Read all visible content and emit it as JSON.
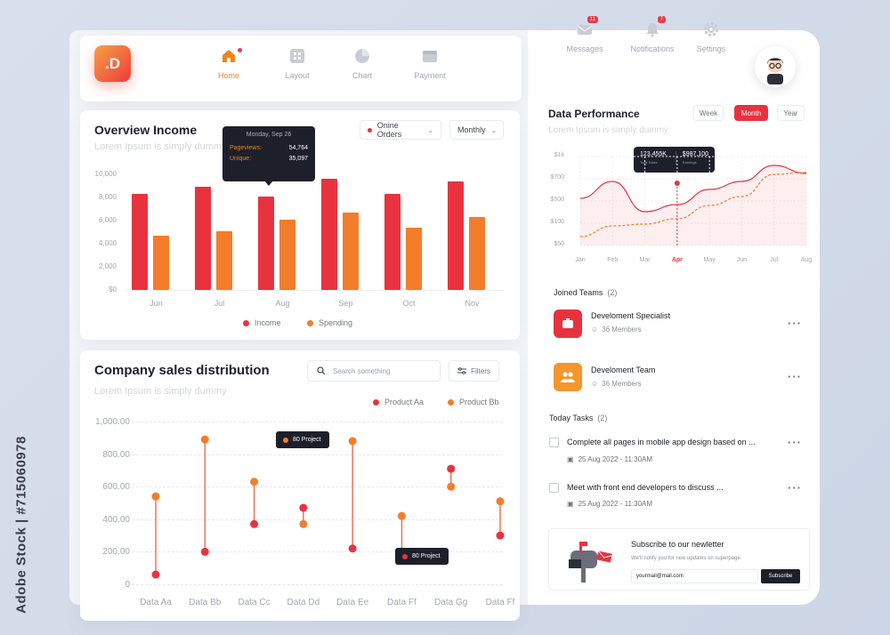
{
  "watermark": "Adobe Stock | #715060978",
  "brand": {
    "logo_text": ".D"
  },
  "nav": [
    {
      "label": "Home",
      "icon": "home-icon",
      "active": true
    },
    {
      "label": "Layout",
      "icon": "layout-icon",
      "active": false
    },
    {
      "label": "Chart",
      "icon": "pie-chart-icon",
      "active": false
    },
    {
      "label": "Payment",
      "icon": "wallet-icon",
      "active": false
    }
  ],
  "top_right": {
    "messages": {
      "label": "Messages",
      "badge": "11"
    },
    "notifications": {
      "label": "Notifications",
      "badge": "7"
    },
    "settings": {
      "label": "Settings"
    }
  },
  "colors": {
    "accent": "#f0851b",
    "red": "#e8333f",
    "orange": "#f37d2a",
    "dark": "#1d1f2b"
  },
  "overview": {
    "title": "Overview Income",
    "subtitle": "Lorem Ipsum is simply dummy",
    "filter1": "Onine Orders",
    "filter2": "Monthly",
    "legend_income": "Income",
    "legend_spending": "Spending",
    "tooltip": {
      "date": "Monday, Sep 26",
      "k1": "Pageviews:",
      "v1": "54,764",
      "k2": "Unique:",
      "v2": "35,097"
    }
  },
  "sales": {
    "title": "Company sales distribution",
    "subtitle": "Lorem Ipsum is simply dummy",
    "search_placeholder": "Search something",
    "filters_label": "Filters",
    "legend_a": "Product Aa",
    "legend_b": "Product Bb",
    "tag1": "80 Project",
    "tag2": "80 Project"
  },
  "performance": {
    "title": "Data Performance",
    "subtitle": "Lorem Ipsum is simply dummy",
    "seg_week": "Week",
    "seg_month": "Month",
    "seg_year": "Year",
    "tooltip_total": "123,455K",
    "tooltip_total_label": "Total Sales",
    "tooltip_earn": "$987,100",
    "tooltip_earn_label": "Earnings"
  },
  "teams": {
    "title": "Joined Teams",
    "count": "(2)",
    "items": [
      {
        "name": "Develoment Specialist",
        "members": "36 Members",
        "color": "#e8333f"
      },
      {
        "name": "Develoment Team",
        "members": "36 Members",
        "color": "#f5962d"
      }
    ]
  },
  "tasks": {
    "title": "Today Tasks",
    "count": "(2)",
    "items": [
      {
        "text": "Complete all pages in mobile app design based on ...",
        "date": "25 Aug 2022 - 11:30AM"
      },
      {
        "text": "Meet with front end developers to discuss ...",
        "date": "25 Aug 2022 - 11:30AM"
      }
    ]
  },
  "newsletter": {
    "title": "Subscribe to our newletter",
    "subtitle": "We'll notify you for new updates on superpage",
    "email_value": "yourmail@mail.com",
    "button": "Subscribe"
  },
  "chart_data": [
    {
      "type": "bar",
      "categories": [
        "Jun",
        "Jul",
        "Aug",
        "Sep",
        "Oct",
        "Nov"
      ],
      "ylim": [
        0,
        10000
      ],
      "yticks": [
        "10,000",
        "8,000",
        "6,000",
        "4,000",
        "2,000",
        "$0"
      ],
      "series": [
        {
          "name": "Income",
          "color": "#e8333f",
          "values": [
            8300,
            8900,
            8100,
            9600,
            8300,
            9400
          ]
        },
        {
          "name": "Spending",
          "color": "#f37d2a",
          "values": [
            4700,
            5100,
            6100,
            6700,
            5400,
            6300
          ]
        }
      ]
    },
    {
      "type": "scatter",
      "categories": [
        "Data Aa",
        "Data Bb",
        "Data Cc",
        "Data Dd",
        "Data Ee",
        "Data Ff",
        "Data Gg",
        "Data Ff"
      ],
      "ylim": [
        0,
        1000
      ],
      "yticks": [
        "1,000.00",
        "800.00",
        "600.00",
        "400.00",
        "200.00",
        "0"
      ],
      "series": [
        {
          "name": "Product Aa",
          "color": "#e8333f",
          "values": [
            60,
            200,
            370,
            470,
            220,
            160,
            710,
            300
          ]
        },
        {
          "name": "Product Bb",
          "color": "#f37d2a",
          "values": [
            540,
            890,
            630,
            370,
            880,
            420,
            600,
            510
          ]
        }
      ]
    },
    {
      "type": "line",
      "categories": [
        "Jan",
        "Feb",
        "Mar",
        "Apr",
        "May",
        "Jun",
        "Jul",
        "Aug"
      ],
      "yticks": [
        "$1k",
        "$700",
        "$500",
        "$100",
        "$50"
      ],
      "series": [
        {
          "name": "Earnings",
          "color": "#e8333f",
          "values": [
            0.53,
            0.72,
            0.38,
            0.46,
            0.63,
            0.72,
            0.9,
            0.81
          ]
        },
        {
          "name": "Total Sales",
          "color": "#f37d2a",
          "values": [
            0.1,
            0.22,
            0.24,
            0.3,
            0.45,
            0.55,
            0.8,
            0.82
          ]
        }
      ]
    }
  ]
}
